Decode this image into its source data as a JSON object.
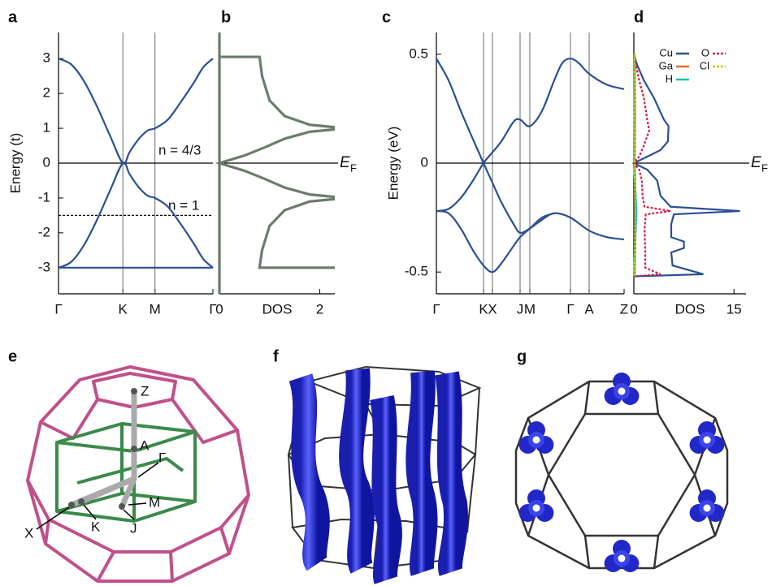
{
  "chart_data": [
    {
      "type": "line",
      "panel": "a",
      "ylabel": "Energy (t)",
      "smooth": true,
      "xgrid": true,
      "xlim": [
        0,
        2.4
      ],
      "ylim": [
        -3.75,
        3.75
      ],
      "xticks": [
        {
          "value": 0,
          "label": "Γ"
        },
        {
          "value": 1,
          "label": "K"
        },
        {
          "value": 1.5,
          "label": "M"
        },
        {
          "value": 2.4,
          "label": "Γ"
        }
      ],
      "yticks": [
        -3,
        -2,
        -1,
        0,
        1,
        2,
        3
      ],
      "reference_lines": [
        {
          "y": 0,
          "style": "solid"
        },
        {
          "y": -1.5,
          "style": "dashed"
        }
      ],
      "annotations": [
        "n = 4/3",
        "n = 1"
      ],
      "series": [
        {
          "color": "#2b4f93",
          "x": [
            0,
            0.2,
            0.4,
            0.6,
            0.8,
            1.0,
            1.1,
            1.2,
            1.3,
            1.4,
            1.5,
            1.7,
            1.9,
            2.1,
            2.25,
            2.4
          ],
          "values": [
            3,
            2.83,
            2.34,
            1.62,
            0.79,
            0,
            0.3,
            0.58,
            0.8,
            0.95,
            1.0,
            1.25,
            1.75,
            2.3,
            2.75,
            3
          ]
        },
        {
          "color": "#2b4f93",
          "x": [
            0,
            0.2,
            0.4,
            0.6,
            0.8,
            1.0,
            1.1,
            1.2,
            1.3,
            1.4,
            1.5,
            1.7,
            1.9,
            2.1,
            2.25,
            2.4
          ],
          "values": [
            -3,
            -2.83,
            -2.34,
            -1.62,
            -0.79,
            0,
            -0.3,
            -0.58,
            -0.8,
            -0.95,
            -1.0,
            -1.25,
            -1.75,
            -2.3,
            -2.75,
            -3
          ]
        },
        {
          "color": "#2b4f93",
          "x": [
            0,
            2.4
          ],
          "values": [
            -3,
            -3
          ]
        }
      ]
    },
    {
      "type": "line",
      "panel": "b",
      "xlabel": "DOS",
      "smooth": false,
      "xlim": [
        0,
        2.3
      ],
      "ylim": [
        -3.75,
        3.75
      ],
      "xticks": [
        0,
        2
      ],
      "reference_lines": [
        {
          "y": 0,
          "style": "solid"
        }
      ],
      "fermi_label": {
        "text": "E",
        "subscript": "F"
      },
      "series": [
        {
          "color": "#6b7c6b",
          "x": [
            0,
            0.8,
            0.85,
            1.0,
            1.3,
            1.8,
            2.3,
            null,
            2.3,
            1.8,
            1.3,
            0.9,
            0.5,
            0,
            0.5,
            0.9,
            1.3,
            1.8,
            2.3,
            null,
            2.3,
            1.8,
            1.3,
            1.0,
            0.85,
            0.8,
            2.3,
            null,
            0,
            0
          ],
          "values": [
            3.05,
            3.05,
            2.5,
            1.8,
            1.35,
            1.1,
            1.03,
            null,
            0.97,
            0.9,
            0.7,
            0.45,
            0.22,
            0,
            -0.22,
            -0.45,
            -0.7,
            -0.9,
            -0.97,
            null,
            -1.03,
            -1.1,
            -1.35,
            -1.8,
            -2.5,
            -3.0,
            -3.0,
            null,
            3.75,
            -3.75
          ]
        }
      ]
    },
    {
      "type": "line",
      "panel": "c",
      "ylabel": "Energy (eV)",
      "smooth": true,
      "xgrid": true,
      "xlim": [
        0,
        2.31
      ],
      "ylim": [
        -0.6,
        0.6
      ],
      "xticks": [
        {
          "value": 0,
          "label": "Γ"
        },
        {
          "value": 0.58,
          "label": "K"
        },
        {
          "value": 0.69,
          "label": "X"
        },
        {
          "value": 1.03,
          "label": "J"
        },
        {
          "value": 1.15,
          "label": "M"
        },
        {
          "value": 1.65,
          "label": "Γ"
        },
        {
          "value": 1.88,
          "label": "A"
        },
        {
          "value": 2.31,
          "label": "Z"
        }
      ],
      "yticks": [
        -0.5,
        0,
        0.5
      ],
      "reference_lines": [
        {
          "y": 0,
          "style": "solid"
        }
      ],
      "series": [
        {
          "color": "#2b4f93",
          "x": [
            0,
            0.15,
            0.3,
            0.45,
            0.58,
            0.69,
            0.8,
            0.95,
            1.03,
            1.15,
            1.3,
            1.45,
            1.65,
            1.88,
            2.1,
            2.31
          ],
          "values": [
            0.48,
            0.38,
            0.24,
            0.11,
            0.0,
            -0.09,
            -0.18,
            -0.28,
            -0.32,
            -0.3,
            -0.26,
            -0.23,
            -0.25,
            -0.31,
            -0.34,
            -0.35
          ]
        },
        {
          "color": "#2b4f93",
          "x": [
            0,
            0.15,
            0.3,
            0.45,
            0.58,
            0.69,
            0.8,
            0.95,
            1.03,
            1.15,
            1.3,
            1.45,
            1.55,
            1.65,
            1.75,
            1.88,
            2.1,
            2.31
          ],
          "values": [
            -0.22,
            -0.21,
            -0.16,
            -0.08,
            0.0,
            0.05,
            0.1,
            0.19,
            0.2,
            0.17,
            0.24,
            0.38,
            0.46,
            0.48,
            0.46,
            0.41,
            0.36,
            0.34
          ]
        },
        {
          "color": "#2b4f93",
          "x": [
            0,
            0.15,
            0.3,
            0.45,
            0.58,
            0.69,
            0.8,
            0.95,
            1.03,
            1.15,
            1.3,
            1.45
          ],
          "values": [
            -0.22,
            -0.23,
            -0.3,
            -0.4,
            -0.47,
            -0.5,
            -0.46,
            -0.38,
            -0.34,
            -0.3,
            -0.25,
            -0.23
          ]
        }
      ]
    },
    {
      "type": "line",
      "panel": "d",
      "xlabel": "DOS",
      "smooth": false,
      "legend": "top-right",
      "xlim": [
        0,
        16.8
      ],
      "ylim": [
        -0.6,
        0.6
      ],
      "xticks": [
        0,
        15
      ],
      "reference_lines": [
        {
          "y": 0,
          "style": "solid"
        }
      ],
      "fermi_label": {
        "text": "E",
        "subscript": "F"
      },
      "series": [
        {
          "name": "Cu",
          "color": "#2b4f93",
          "x": [
            0,
            0.5,
            1.5,
            3,
            4.5,
            5.2,
            5.1,
            4,
            2,
            0,
            2,
            3.5,
            4,
            5.5,
            15.9,
            6,
            5.6,
            5.6,
            7.5,
            7.5,
            5.6,
            5.8,
            10.4,
            0
          ],
          "values": [
            0.5,
            0.45,
            0.38,
            0.3,
            0.2,
            0.17,
            0.1,
            0.06,
            0.03,
            0,
            -0.03,
            -0.08,
            -0.15,
            -0.2,
            -0.22,
            -0.235,
            -0.28,
            -0.34,
            -0.36,
            -0.39,
            -0.41,
            -0.47,
            -0.51,
            -0.52
          ]
        },
        {
          "name": "Ga",
          "color": "#e07020",
          "x": [
            0.15,
            0.2,
            0.15,
            0.3,
            0.15
          ],
          "values": [
            0.5,
            0.2,
            0,
            -0.22,
            -0.52
          ]
        },
        {
          "name": "H",
          "color": "#20c0a0",
          "x": [
            0,
            0.05,
            0,
            0.4,
            0
          ],
          "values": [
            0.5,
            0.2,
            0,
            -0.22,
            -0.52
          ]
        },
        {
          "name": "O",
          "color": "#d0204a",
          "dash": true,
          "x": [
            0,
            0.3,
            0.8,
            1.5,
            2,
            2.3,
            1.5,
            0.8,
            0,
            0.8,
            1.2,
            1.3,
            1.6,
            5.5,
            1.8,
            1.6,
            1.7,
            1.7,
            4,
            0
          ],
          "values": [
            0.5,
            0.45,
            0.38,
            0.3,
            0.2,
            0.15,
            0.08,
            0.03,
            0,
            -0.03,
            -0.08,
            -0.15,
            -0.2,
            -0.22,
            -0.235,
            -0.3,
            -0.4,
            -0.48,
            -0.51,
            -0.52
          ]
        },
        {
          "name": "Cl",
          "color": "#c8c820",
          "dash": true,
          "x": [
            0.1,
            0.1,
            0.1,
            0.2,
            0.1
          ],
          "values": [
            0.5,
            0.2,
            0,
            -0.22,
            -0.52
          ]
        }
      ]
    }
  ],
  "figures": [
    {
      "panel": "e",
      "labels": [
        "Z",
        "A",
        "Γ",
        "M",
        "X",
        "K",
        "J"
      ]
    },
    {
      "panel": "f"
    },
    {
      "panel": "g"
    }
  ]
}
